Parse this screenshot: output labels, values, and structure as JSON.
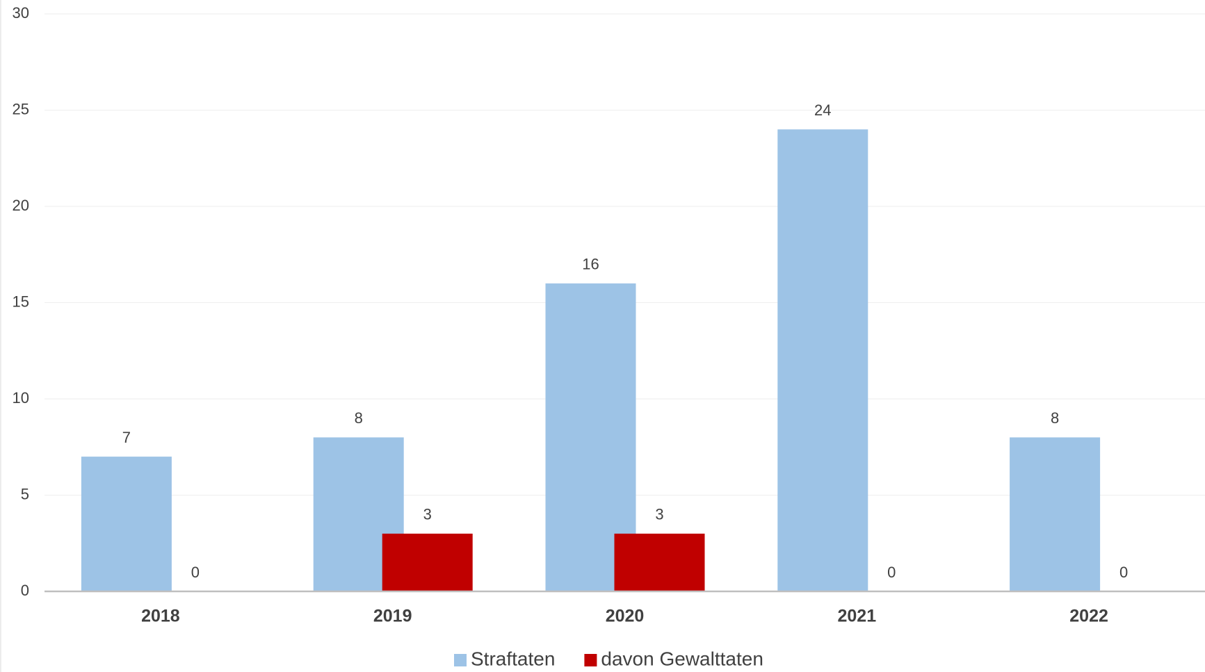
{
  "chart_data": {
    "type": "bar",
    "categories": [
      "2018",
      "2019",
      "2020",
      "2021",
      "2022"
    ],
    "series": [
      {
        "name": "Straftaten",
        "color": "#9dc3e6",
        "values": [
          7,
          8,
          16,
          24,
          8
        ]
      },
      {
        "name": "davon Gewalttaten",
        "color": "#c00000",
        "values": [
          0,
          3,
          3,
          0,
          0
        ]
      }
    ],
    "ylim": [
      0,
      30
    ],
    "yticks": [
      0,
      5,
      10,
      15,
      20,
      25,
      30
    ],
    "grid": true,
    "legend": "bottom"
  }
}
